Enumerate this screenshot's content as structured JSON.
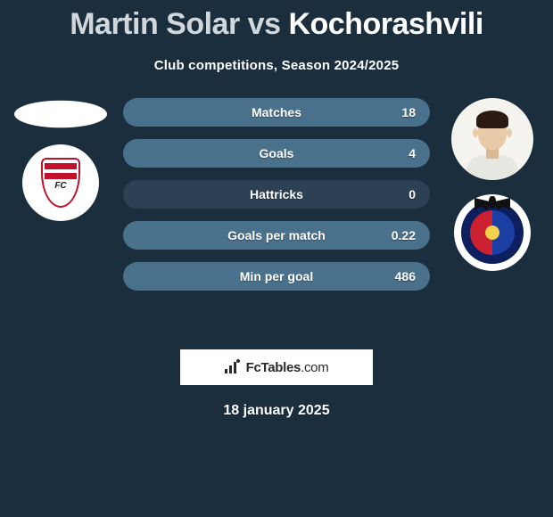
{
  "title": {
    "player1": "Martin Solar",
    "vs": "vs",
    "player2": "Kochorashvili"
  },
  "subtitle": "Club competitions, Season 2024/2025",
  "colors": {
    "title_p1": "#d1d7da",
    "title_p2": "#ffffff",
    "row_empty": "#2c4254",
    "row_fill": "#4a718b"
  },
  "stats": [
    {
      "label": "Matches",
      "value": "18",
      "fill_pct": 100
    },
    {
      "label": "Goals",
      "value": "4",
      "fill_pct": 100
    },
    {
      "label": "Hattricks",
      "value": "0",
      "fill_pct": 0
    },
    {
      "label": "Goals per match",
      "value": "0.22",
      "fill_pct": 100
    },
    {
      "label": "Min per goal",
      "value": "486",
      "fill_pct": 100
    }
  ],
  "branding": {
    "name_bold": "FcTables",
    "name_light": ".com"
  },
  "date": "18 january 2025",
  "left": {
    "avatar": "blank",
    "club": "granada",
    "club_text": "FC"
  },
  "right": {
    "avatar": "photo",
    "club": "levante"
  }
}
